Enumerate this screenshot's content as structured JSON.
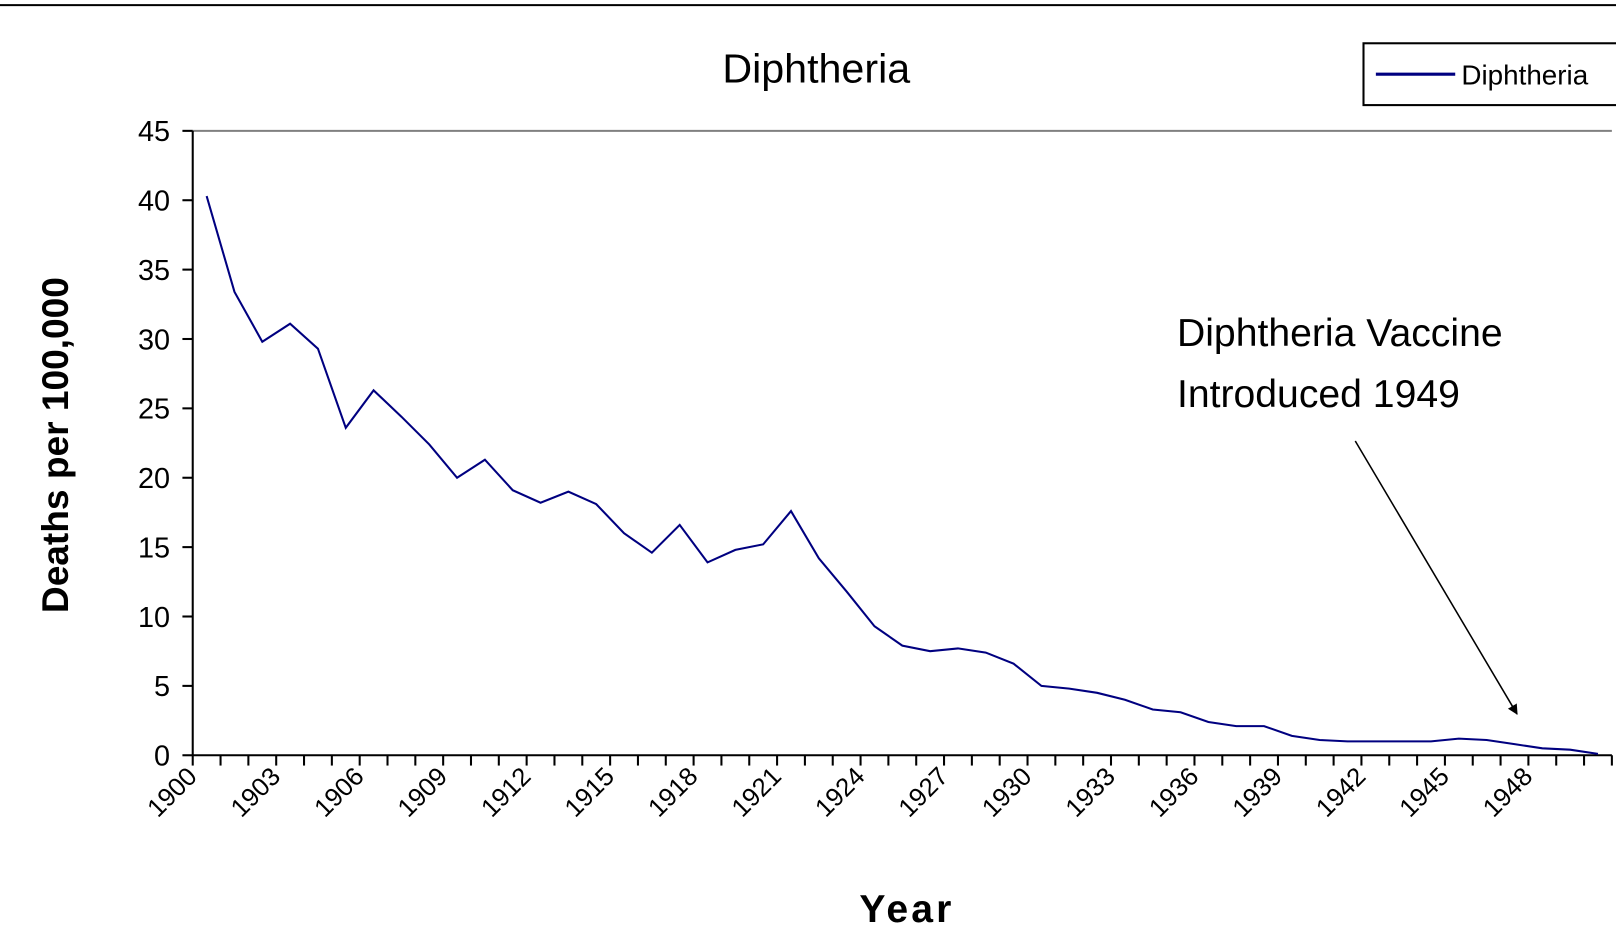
{
  "chart_data": {
    "type": "line",
    "title": "Diphtheria",
    "x_label": "Year",
    "y_label": "Deaths per 100,000",
    "categories": [
      "1900",
      null,
      null,
      "1903",
      null,
      null,
      "1906",
      null,
      null,
      "1909",
      null,
      null,
      "1912",
      null,
      null,
      "1915",
      null,
      null,
      "1918",
      null,
      null,
      "1921",
      null,
      null,
      "1924",
      null,
      null,
      "1927",
      null,
      null,
      "1930",
      null,
      null,
      "1933",
      null,
      null,
      "1936",
      null,
      null,
      "1939",
      null,
      null,
      "1942",
      null,
      null,
      "1945",
      null,
      null,
      "1948",
      null,
      null
    ],
    "series": [
      {
        "name": "Diphtheria",
        "color": "#000080",
        "values": [
          40.3,
          33.4,
          29.8,
          31.1,
          29.3,
          23.6,
          26.3,
          24.4,
          22.4,
          20.0,
          21.3,
          19.1,
          18.2,
          19.0,
          18.1,
          16.0,
          14.6,
          16.6,
          13.9,
          14.8,
          15.2,
          17.6,
          14.2,
          11.8,
          9.3,
          7.9,
          7.5,
          7.7,
          7.4,
          6.6,
          5.0,
          4.8,
          4.5,
          4.0,
          3.3,
          3.1,
          2.4,
          2.1,
          2.1,
          1.4,
          1.1,
          1.0,
          1.0,
          1.0,
          1.0,
          1.2,
          1.1,
          0.8,
          0.5,
          0.4,
          0.1
        ]
      }
    ],
    "ylim": [
      0,
      45
    ],
    "yticks": [
      0,
      5,
      10,
      15,
      20,
      25,
      30,
      35,
      40,
      45
    ],
    "grid": false,
    "legend": "top-right",
    "annotation": [
      "Diphtheria Vaccine",
      "Introduced 1949"
    ]
  }
}
